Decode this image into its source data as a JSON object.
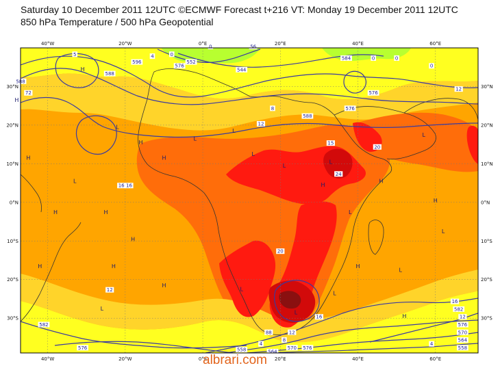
{
  "header": {
    "title_line1": "Saturday 10 December 2011 12UTC ©ECMWF Forecast t+216 VT: Monday 19 December 2011 12UTC",
    "title_line2": "850 hPa Temperature / 500 hPa Geopotential"
  },
  "map": {
    "lon_labels": [
      "40°W",
      "20°W",
      "0°E",
      "20°E",
      "40°E",
      "60°E"
    ],
    "lat_labels_left": [
      "30°N",
      "20°N",
      "10°N",
      "0°N",
      "10°S",
      "20°S",
      "30°S"
    ],
    "lat_labels_right": [
      "30°N",
      "20°N",
      "10°N",
      "0°N",
      "10°S",
      "20°S",
      "30°S"
    ],
    "colors": {
      "sea_warm": "#ffa500",
      "land_hot": "#ff6d0a",
      "hottest": "#ff1a10",
      "extreme": "#d20a0a",
      "core": "#8a1010",
      "cool_yellow": "#ffff20",
      "mild": "#ffd42a",
      "cold_green": "#b8ff30",
      "contour": "#3a3aa0",
      "coast": "#333333"
    },
    "labels": [
      {
        "text": "588",
        "lon": -47,
        "lat": 31
      },
      {
        "text": "72",
        "lon": -45,
        "lat": 28
      },
      {
        "text": "5",
        "lon": -33,
        "lat": 38
      },
      {
        "text": "H",
        "lon": -31,
        "lat": 34,
        "kind": "hl"
      },
      {
        "text": "588",
        "lon": -24,
        "lat": 33
      },
      {
        "text": "596",
        "lon": -17,
        "lat": 36
      },
      {
        "text": "4",
        "lon": -13,
        "lat": 37.5
      },
      {
        "text": "0",
        "lon": -8,
        "lat": 38
      },
      {
        "text": "576",
        "lon": -6,
        "lat": 35
      },
      {
        "text": "552",
        "lon": -3,
        "lat": 36
      },
      {
        "text": "0",
        "lon": 2,
        "lat": 40
      },
      {
        "text": "544",
        "lon": 10,
        "lat": 34
      },
      {
        "text": "56",
        "lon": 13,
        "lat": 40
      },
      {
        "text": "584",
        "lon": 37,
        "lat": 37
      },
      {
        "text": "0",
        "lon": 44,
        "lat": 37
      },
      {
        "text": "0",
        "lon": 50,
        "lat": 37
      },
      {
        "text": "0",
        "lon": 59,
        "lat": 35
      },
      {
        "text": "12",
        "lon": 66,
        "lat": 29
      },
      {
        "text": "576",
        "lon": 44,
        "lat": 28
      },
      {
        "text": "576",
        "lon": 38,
        "lat": 24
      },
      {
        "text": "588",
        "lon": 27,
        "lat": 22
      },
      {
        "text": "8",
        "lon": 18,
        "lat": 24
      },
      {
        "text": "12",
        "lon": 15,
        "lat": 20
      },
      {
        "text": "15",
        "lon": 33,
        "lat": 15
      },
      {
        "text": "20",
        "lon": 45,
        "lat": 14
      },
      {
        "text": "24",
        "lon": 35,
        "lat": 7
      },
      {
        "text": "16",
        "lon": -21,
        "lat": 4
      },
      {
        "text": "16",
        "lon": -19,
        "lat": 4
      },
      {
        "text": "20",
        "lon": 20,
        "lat": -13
      },
      {
        "text": "12",
        "lon": -24,
        "lat": -23
      },
      {
        "text": "16",
        "lon": 65,
        "lat": -26
      },
      {
        "text": "582",
        "lon": 66,
        "lat": -28
      },
      {
        "text": "12",
        "lon": 67,
        "lat": -30
      },
      {
        "text": "576",
        "lon": 67,
        "lat": -32
      },
      {
        "text": "570",
        "lon": 67,
        "lat": -34
      },
      {
        "text": "564",
        "lon": 67,
        "lat": -36
      },
      {
        "text": "558",
        "lon": 67,
        "lat": -38
      },
      {
        "text": "4",
        "lon": 59,
        "lat": -37
      },
      {
        "text": "582",
        "lon": -41,
        "lat": -32
      },
      {
        "text": "576",
        "lon": -31,
        "lat": -38
      },
      {
        "text": "558",
        "lon": 10,
        "lat": -38.5
      },
      {
        "text": "564",
        "lon": 18,
        "lat": -39
      },
      {
        "text": "570",
        "lon": 23,
        "lat": -38
      },
      {
        "text": "576",
        "lon": 27,
        "lat": -38
      },
      {
        "text": "88",
        "lon": 17,
        "lat": -34
      },
      {
        "text": "12",
        "lon": 23,
        "lat": -34
      },
      {
        "text": "16",
        "lon": 30,
        "lat": -30
      },
      {
        "text": "8",
        "lon": 21,
        "lat": -36
      },
      {
        "text": "4",
        "lon": 15,
        "lat": -37
      },
      {
        "text": "H",
        "lon": -48,
        "lat": 26,
        "kind": "hl"
      },
      {
        "text": "L",
        "lon": -22,
        "lat": 19,
        "kind": "hl"
      },
      {
        "text": "H",
        "lon": -16,
        "lat": 15,
        "kind": "hl"
      },
      {
        "text": "L",
        "lon": 8,
        "lat": 18,
        "kind": "hl"
      },
      {
        "text": "L",
        "lon": -2,
        "lat": 16,
        "kind": "hl"
      },
      {
        "text": "H",
        "lon": -45,
        "lat": 11,
        "kind": "hl"
      },
      {
        "text": "H",
        "lon": -10,
        "lat": 11,
        "kind": "hl"
      },
      {
        "text": "L",
        "lon": 13,
        "lat": 12,
        "kind": "hl"
      },
      {
        "text": "L",
        "lon": 21,
        "lat": 9,
        "kind": "hl"
      },
      {
        "text": "L",
        "lon": -33,
        "lat": 5,
        "kind": "hl"
      },
      {
        "text": "L",
        "lon": 33,
        "lat": 10,
        "kind": "hl"
      },
      {
        "text": "L",
        "lon": 57,
        "lat": 17,
        "kind": "hl"
      },
      {
        "text": "H",
        "lon": -38,
        "lat": -3,
        "kind": "hl"
      },
      {
        "text": "H",
        "lon": -25,
        "lat": -3,
        "kind": "hl"
      },
      {
        "text": "L",
        "lon": 38,
        "lat": -3,
        "kind": "hl"
      },
      {
        "text": "H",
        "lon": -18,
        "lat": -10,
        "kind": "hl"
      },
      {
        "text": "L",
        "lon": 62,
        "lat": -8,
        "kind": "hl"
      },
      {
        "text": "H",
        "lon": -42,
        "lat": -17,
        "kind": "hl"
      },
      {
        "text": "H",
        "lon": -23,
        "lat": -17,
        "kind": "hl"
      },
      {
        "text": "H",
        "lon": 40,
        "lat": -17,
        "kind": "hl"
      },
      {
        "text": "L",
        "lon": 51,
        "lat": -18,
        "kind": "hl"
      },
      {
        "text": "H",
        "lon": -10,
        "lat": -22,
        "kind": "hl"
      },
      {
        "text": "L",
        "lon": 10,
        "lat": -23,
        "kind": "hl"
      },
      {
        "text": "L",
        "lon": 24,
        "lat": -29,
        "kind": "hl"
      },
      {
        "text": "L",
        "lon": 34,
        "lat": -24,
        "kind": "hl"
      },
      {
        "text": "H",
        "lon": 52,
        "lat": -30,
        "kind": "hl"
      },
      {
        "text": "L",
        "lon": -26,
        "lat": -28,
        "kind": "hl"
      },
      {
        "text": "H",
        "lon": 60,
        "lat": 0,
        "kind": "hl"
      },
      {
        "text": "H",
        "lon": 46,
        "lat": 5,
        "kind": "hl"
      },
      {
        "text": "H",
        "lon": 31,
        "lat": 4,
        "kind": "hl"
      }
    ]
  },
  "watermark": "albrari.com"
}
